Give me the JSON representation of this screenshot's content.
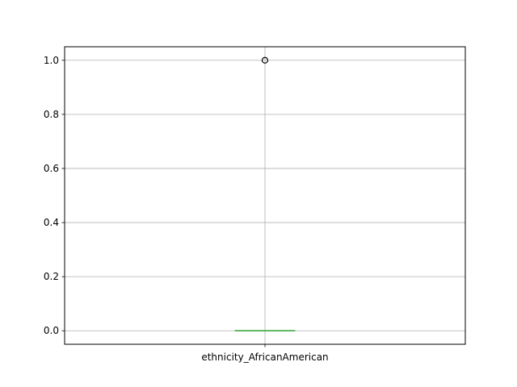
{
  "chart_data": {
    "type": "box",
    "categories": [
      "ethnicity_AfricanAmerican"
    ],
    "boxes": [
      {
        "name": "ethnicity_AfricanAmerican",
        "q1": 0.0,
        "median": 0.0,
        "q3": 0.0,
        "whisker_low": 0.0,
        "whisker_high": 0.0,
        "outliers": [
          1.0
        ]
      }
    ],
    "ylim": [
      -0.05,
      1.05
    ],
    "yticks": [
      "0.0",
      "0.2",
      "0.4",
      "0.6",
      "0.8",
      "1.0"
    ],
    "grid": true,
    "title": "",
    "xlabel": "",
    "ylabel": ""
  },
  "colors": {
    "box": "#1f77b4",
    "median": "#2ca02c",
    "grid": "#b0b0b0",
    "whisker": "#000000",
    "outlier": "#000000"
  }
}
